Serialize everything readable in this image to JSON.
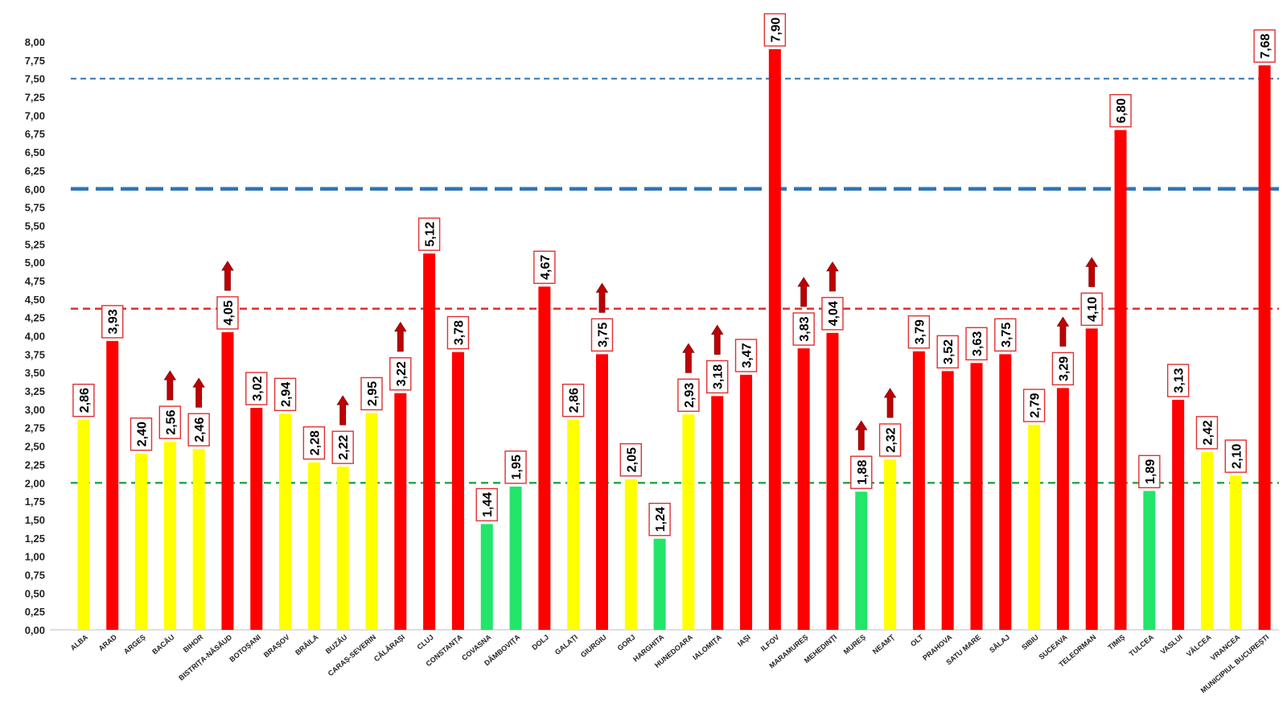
{
  "chart_data": {
    "type": "bar",
    "title": "",
    "xlabel": "",
    "ylabel": "",
    "ylim": [
      0,
      8.0
    ],
    "y_ticks": [
      "0,00",
      "0,25",
      "0,50",
      "0,75",
      "1,00",
      "1,25",
      "1,50",
      "1,75",
      "2,00",
      "2,25",
      "2,50",
      "2,75",
      "3,00",
      "3,25",
      "3,50",
      "3,75",
      "4,00",
      "4,25",
      "4,50",
      "4,75",
      "5,00",
      "5,25",
      "5,50",
      "5,75",
      "6,00",
      "6,25",
      "6,50",
      "6,75",
      "7,00",
      "7,25",
      "7,50",
      "7,75",
      "8,00"
    ],
    "categories": [
      "ALBA",
      "ARAD",
      "ARGEȘ",
      "BACĂU",
      "BIHOR",
      "BISTRIȚA-NĂSĂUD",
      "BOTOȘANI",
      "BRAȘOV",
      "BRĂILA",
      "BUZĂU",
      "CARAȘ-SEVERIN",
      "CĂLĂRAȘI",
      "CLUJ",
      "CONSTANȚA",
      "COVASNA",
      "DÂMBOVIȚA",
      "DOLJ",
      "GALAȚI",
      "GIURGIU",
      "GORJ",
      "HARGHITA",
      "HUNEDOARA",
      "IALOMIȚA",
      "IAȘI",
      "ILFOV",
      "MARAMUREȘ",
      "MEHEDINȚI",
      "MUREȘ",
      "NEAMȚ",
      "OLT",
      "PRAHOVA",
      "SATU MARE",
      "SĂLAJ",
      "SIBIU",
      "SUCEAVA",
      "TELEORMAN",
      "TIMIȘ",
      "TULCEA",
      "VASLUI",
      "VÂLCEA",
      "VRANCEA",
      "MUNICIPIUL BUCUREȘTI"
    ],
    "values": [
      2.86,
      3.93,
      2.4,
      2.56,
      2.46,
      4.05,
      3.02,
      2.94,
      2.28,
      2.22,
      2.95,
      3.22,
      5.12,
      3.78,
      1.44,
      1.95,
      4.67,
      2.86,
      3.75,
      2.05,
      1.24,
      2.93,
      3.18,
      3.47,
      7.9,
      3.83,
      4.04,
      1.88,
      2.32,
      3.79,
      3.52,
      3.63,
      3.75,
      2.79,
      3.29,
      4.1,
      6.8,
      1.89,
      3.13,
      2.42,
      2.1,
      7.68
    ],
    "labels": [
      "2,86",
      "3,93",
      "2,40",
      "2,56",
      "2,46",
      "4,05",
      "3,02",
      "2,94",
      "2,28",
      "2,22",
      "2,95",
      "3,22",
      "5,12",
      "3,78",
      "1,44",
      "1,95",
      "4,67",
      "2,86",
      "3,75",
      "2,05",
      "1,24",
      "2,93",
      "3,18",
      "3,47",
      "7,90",
      "3,83",
      "4,04",
      "1,88",
      "2,32",
      "3,79",
      "3,52",
      "3,63",
      "3,75",
      "2,79",
      "3,29",
      "4,10",
      "6,80",
      "1,89",
      "3,13",
      "2,42",
      "2,10",
      "7,68"
    ],
    "bar_colors": [
      "#ffff00",
      "#ff0000",
      "#ffff00",
      "#ffff00",
      "#ffff00",
      "#ff0000",
      "#ff0000",
      "#ffff00",
      "#ffff00",
      "#ffff00",
      "#ffff00",
      "#ff0000",
      "#ff0000",
      "#ff0000",
      "#22e56a",
      "#22e56a",
      "#ff0000",
      "#ffff00",
      "#ff0000",
      "#ffff00",
      "#22e56a",
      "#ffff00",
      "#ff0000",
      "#ff0000",
      "#ff0000",
      "#ff0000",
      "#ff0000",
      "#22e56a",
      "#ffff00",
      "#ff0000",
      "#ff0000",
      "#ff0000",
      "#ff0000",
      "#ffff00",
      "#ff0000",
      "#ff0000",
      "#ff0000",
      "#22e56a",
      "#ff0000",
      "#ffff00",
      "#ffff00",
      "#ff0000"
    ],
    "up_arrows": [
      false,
      false,
      false,
      true,
      true,
      true,
      false,
      false,
      false,
      true,
      false,
      true,
      false,
      false,
      false,
      false,
      false,
      false,
      true,
      false,
      false,
      true,
      true,
      false,
      false,
      true,
      true,
      true,
      true,
      false,
      false,
      false,
      false,
      false,
      true,
      true,
      false,
      false,
      false,
      false,
      false,
      false
    ],
    "thresholds": [
      {
        "value": 7.5,
        "color": "#2e75b6",
        "style": "thin"
      },
      {
        "value": 6.0,
        "color": "#2e75b6",
        "style": "thick"
      },
      {
        "value": 4.37,
        "color": "#e03030",
        "style": "medium"
      },
      {
        "value": 2.0,
        "color": "#2aa84a",
        "style": "medium"
      }
    ],
    "colors": {
      "red": "#ff0000",
      "yellow": "#ffff00",
      "green": "#22e56a",
      "label_border": "#e03030",
      "arrow": "#c00000"
    }
  }
}
